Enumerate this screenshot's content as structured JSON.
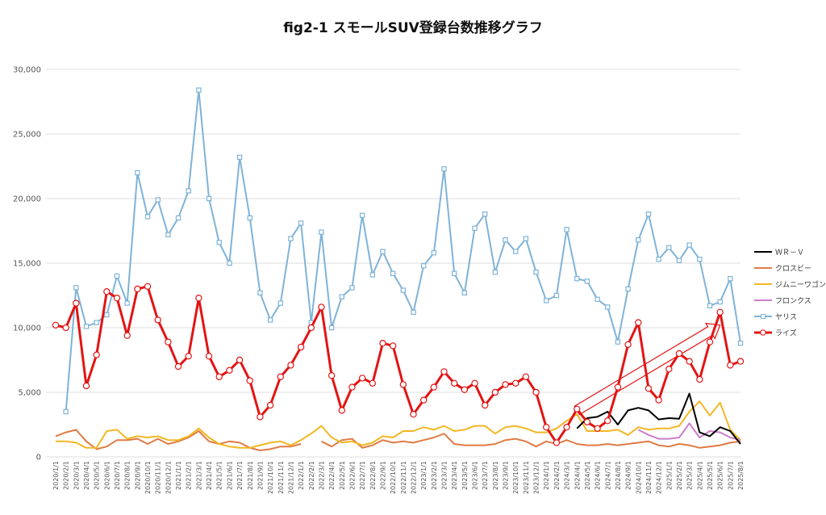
{
  "chart_data": {
    "type": "line",
    "title": "fig2-1 スモールSUV登録台数推移グラフ",
    "xlabel": "",
    "ylabel": "",
    "ylim": [
      0,
      30000
    ],
    "yticks": [
      "0",
      "5,000",
      "10,000",
      "15,000",
      "20,000",
      "25,000",
      "30,000"
    ],
    "grid": true,
    "legend_position": "right",
    "x": [
      "2020/1/1",
      "2020/2/1",
      "2020/3/1",
      "2020/4/1",
      "2020/5/1",
      "2020/6/1",
      "2020/7/1",
      "2020/8/1",
      "2020/9/1",
      "2020/10/1",
      "2020/11/1",
      "2020/12/1",
      "2021/1/1",
      "2021/2/1",
      "2021/3/1",
      "2021/4/1",
      "2021/5/1",
      "2021/6/1",
      "2021/7/1",
      "2021/8/1",
      "2021/9/1",
      "2021/10/1",
      "2021/11/1",
      "2021/12/1",
      "2022/1/1",
      "2022/2/1",
      "2022/3/1",
      "2022/4/1",
      "2022/5/1",
      "2022/6/1",
      "2022/7/1",
      "2022/8/1",
      "2022/9/1",
      "2022/10/1",
      "2022/11/1",
      "2022/12/1",
      "2023/1/1",
      "2023/2/1",
      "2023/3/1",
      "2023/4/1",
      "2023/5/1",
      "2023/6/1",
      "2023/7/1",
      "2023/8/1",
      "2023/9/1",
      "2023/10/1",
      "2023/11/1",
      "2023/12/1",
      "2024/1/1",
      "2024/2/1",
      "2024/3/1",
      "2024/4/1",
      "2024/5/1",
      "2024/6/1",
      "2024/7/1",
      "2024/8/1",
      "2024/9/1",
      "2024/10/1",
      "2024/11/1",
      "2024/12/1",
      "2025/1/1",
      "2025/2/1",
      "2025/3/1",
      "2025/4/1",
      "2025/5/1",
      "2025/6/1",
      "2025/7/1",
      "2025/8/1"
    ],
    "series": [
      {
        "name": "ＷＲ－Ｖ",
        "color": "#000000",
        "values": [
          null,
          null,
          null,
          null,
          null,
          null,
          null,
          null,
          null,
          null,
          null,
          null,
          null,
          null,
          null,
          null,
          null,
          null,
          null,
          null,
          null,
          null,
          null,
          null,
          null,
          null,
          null,
          null,
          null,
          null,
          null,
          null,
          null,
          null,
          null,
          null,
          null,
          null,
          null,
          null,
          null,
          null,
          null,
          null,
          null,
          null,
          null,
          null,
          null,
          null,
          null,
          2200,
          3000,
          3100,
          3500,
          2500,
          3600,
          3800,
          3600,
          2900,
          3000,
          2950,
          4900,
          1900,
          1600,
          2300,
          2000,
          1000
        ]
      },
      {
        "name": "クロスビー",
        "color": "#e07b45",
        "values": [
          1600,
          1900,
          2100,
          1200,
          600,
          800,
          1300,
          1300,
          1400,
          1000,
          1400,
          1000,
          1200,
          1500,
          2000,
          1200,
          1000,
          1200,
          1100,
          700,
          500,
          600,
          800,
          800,
          1000,
          null,
          1200,
          800,
          1300,
          1400,
          700,
          900,
          1300,
          1100,
          1200,
          1100,
          1300,
          1500,
          1800,
          1000,
          900,
          900,
          900,
          1000,
          1300,
          1400,
          1200,
          800,
          1200,
          1000,
          1300,
          1000,
          900,
          900,
          1000,
          900,
          1000,
          1100,
          1200,
          900,
          800,
          1000,
          900,
          700,
          800,
          900,
          1100,
          1200
        ]
      },
      {
        "name": "ジムニーワゴン",
        "color": "#f2b824",
        "values": [
          1200,
          1200,
          1100,
          700,
          700,
          2000,
          2100,
          1400,
          1600,
          1500,
          1600,
          1300,
          1300,
          1600,
          2200,
          1500,
          1000,
          800,
          700,
          700,
          900,
          1100,
          1200,
          900,
          1300,
          1800,
          2400,
          1500,
          1100,
          1200,
          900,
          1100,
          1600,
          1500,
          2000,
          2000,
          2300,
          2100,
          2400,
          2000,
          2100,
          2400,
          2400,
          1800,
          2300,
          2400,
          2200,
          1900,
          1900,
          2200,
          2800,
          3300,
          2000,
          2000,
          2000,
          2100,
          1700,
          2300,
          2100,
          2200,
          2200,
          2400,
          3500,
          4300,
          3200,
          4200,
          2100,
          1300
        ]
      },
      {
        "name": "フロンクス",
        "color": "#cc7ecb",
        "values": [
          null,
          null,
          null,
          null,
          null,
          null,
          null,
          null,
          null,
          null,
          null,
          null,
          null,
          null,
          null,
          null,
          null,
          null,
          null,
          null,
          null,
          null,
          null,
          null,
          null,
          null,
          null,
          null,
          null,
          null,
          null,
          null,
          null,
          null,
          null,
          null,
          null,
          null,
          null,
          null,
          null,
          null,
          null,
          null,
          null,
          null,
          null,
          null,
          null,
          null,
          null,
          null,
          null,
          null,
          null,
          null,
          null,
          2100,
          1700,
          1400,
          1400,
          1500,
          2600,
          1500,
          2000,
          1900,
          1500,
          1300
        ]
      },
      {
        "name": "ヤリス",
        "color": "#7fb3d8",
        "values": [
          null,
          3500,
          13100,
          10100,
          10400,
          11000,
          14000,
          11900,
          22000,
          18600,
          19900,
          17200,
          18500,
          20600,
          28400,
          20000,
          16600,
          15000,
          23200,
          18500,
          12700,
          10600,
          11900,
          16900,
          18100,
          10400,
          17400,
          10000,
          12400,
          13100,
          18700,
          14100,
          15900,
          14200,
          12900,
          11200,
          14800,
          15800,
          22300,
          14200,
          12700,
          17700,
          18800,
          14300,
          16800,
          15900,
          16900,
          14300,
          12100,
          12500,
          17600,
          13800,
          13600,
          12200,
          11600,
          8900,
          13000,
          16800,
          18800,
          15300,
          16200,
          15200,
          16400,
          15300,
          11700,
          12000,
          13800,
          8800
        ]
      },
      {
        "name": "ライズ",
        "color": "#e31414",
        "values": [
          10200,
          10000,
          11900,
          5500,
          7900,
          12800,
          12300,
          9400,
          13000,
          13200,
          10600,
          8900,
          7000,
          7800,
          12300,
          7800,
          6200,
          6700,
          7500,
          5900,
          3100,
          4000,
          6200,
          7100,
          8500,
          10000,
          11600,
          6300,
          3600,
          5400,
          6100,
          5700,
          8800,
          8600,
          5600,
          3300,
          4400,
          5400,
          6600,
          5700,
          5200,
          5700,
          4000,
          5000,
          5600,
          5700,
          6200,
          5000,
          2300,
          1100,
          2300,
          3700,
          2700,
          2200,
          2800,
          5400,
          8700,
          10400,
          5300,
          4400,
          6800,
          8000,
          7400,
          6000,
          8900,
          11200,
          7100,
          7400
        ]
      }
    ]
  }
}
